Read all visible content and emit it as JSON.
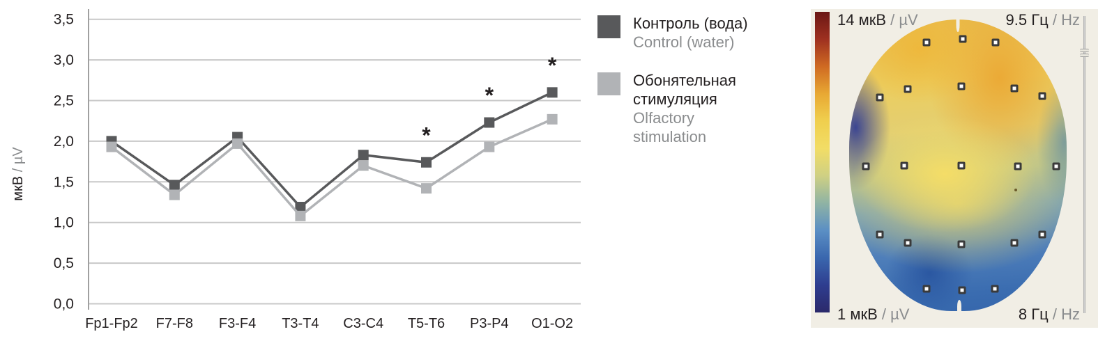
{
  "legend": {
    "items": [
      {
        "swatch_color": "#58595b",
        "label_primary": "Контроль (вода)",
        "label_secondary": "Control (water)"
      },
      {
        "swatch_color": "#b1b3b6",
        "label_primary": "Обонятельная стимуляция",
        "label_secondary": "Olfactory stimulation"
      }
    ]
  },
  "chart_data": [
    {
      "type": "line",
      "title": "",
      "xlabel": "",
      "ylabel_primary": "мкВ",
      "ylabel_secondary": "/ µV",
      "categories": [
        "Fp1-Fp2",
        "F7-F8",
        "F3-F4",
        "T3-T4",
        "C3-C4",
        "T5-T6",
        "P3-P4",
        "O1-O2"
      ],
      "series": [
        {
          "name": "Контроль (вода) / Control (water)",
          "color": "#58595b",
          "values": [
            2.0,
            1.46,
            2.05,
            1.19,
            1.83,
            1.74,
            2.23,
            2.6
          ]
        },
        {
          "name": "Обонятельная стимуляция / Olfactory stimulation",
          "color": "#b1b3b6",
          "values": [
            1.93,
            1.34,
            1.97,
            1.08,
            1.7,
            1.42,
            1.93,
            2.27
          ]
        }
      ],
      "ylim": [
        0,
        3.5
      ],
      "ytick_values": [
        0,
        0.5,
        1.0,
        1.5,
        2.0,
        2.5,
        3.0,
        3.5
      ],
      "ytick_labels": [
        "0,0",
        "0,5",
        "1,0",
        "1,5",
        "2,0",
        "2,5",
        "3,0",
        "3,5"
      ],
      "grid": true,
      "legend_position": "right",
      "significance_marker": "*",
      "significant_categories": [
        "T5-T6",
        "P3-P4",
        "O1-O2"
      ],
      "grid_color": "#c8c8c8",
      "axis_color": "#a0a0a0",
      "text_color": "#231f20"
    },
    {
      "type": "heatmap",
      "subtype": "eeg-topographic-map",
      "scale_labels": {
        "top_left_primary": "14 мкВ",
        "top_left_secondary": "/ µV",
        "top_right_primary": "9.5 Гц",
        "top_right_secondary": "/ Hz",
        "bottom_left_primary": "1 мкВ",
        "bottom_left_secondary": "/ µV",
        "bottom_right_primary": "8 Гц",
        "bottom_right_secondary": "/ Hz"
      },
      "amplitude_range_uv": [
        1,
        14
      ],
      "frequency_range_hz": [
        8,
        9.5
      ],
      "colorbar_stops": [
        "#6b1715",
        "#9e3020",
        "#cf6a22",
        "#e8a833",
        "#f0cf4e",
        "#f2dd66",
        "#cfd083",
        "#8fb3a4",
        "#5b8fc4",
        "#3a67ae",
        "#2e3d8f",
        "#2b296a"
      ],
      "panel_background": "#f1eee5",
      "electrodes_pct": [
        [
          35.6,
          7.9
        ],
        [
          52.2,
          6.7
        ],
        [
          67.3,
          7.9
        ],
        [
          14.1,
          26.7
        ],
        [
          26.9,
          23.9
        ],
        [
          51.6,
          22.9
        ],
        [
          76.0,
          23.6
        ],
        [
          88.8,
          26.3
        ],
        [
          7.7,
          50.4
        ],
        [
          25.3,
          50.1
        ],
        [
          51.6,
          50.1
        ],
        [
          77.6,
          50.4
        ],
        [
          95.2,
          50.4
        ],
        [
          14.1,
          73.7
        ],
        [
          26.9,
          76.6
        ],
        [
          51.6,
          77.1
        ],
        [
          76.0,
          76.6
        ],
        [
          88.8,
          73.7
        ],
        [
          35.6,
          92.4
        ],
        [
          51.9,
          92.8
        ],
        [
          67.0,
          92.4
        ]
      ]
    }
  ]
}
